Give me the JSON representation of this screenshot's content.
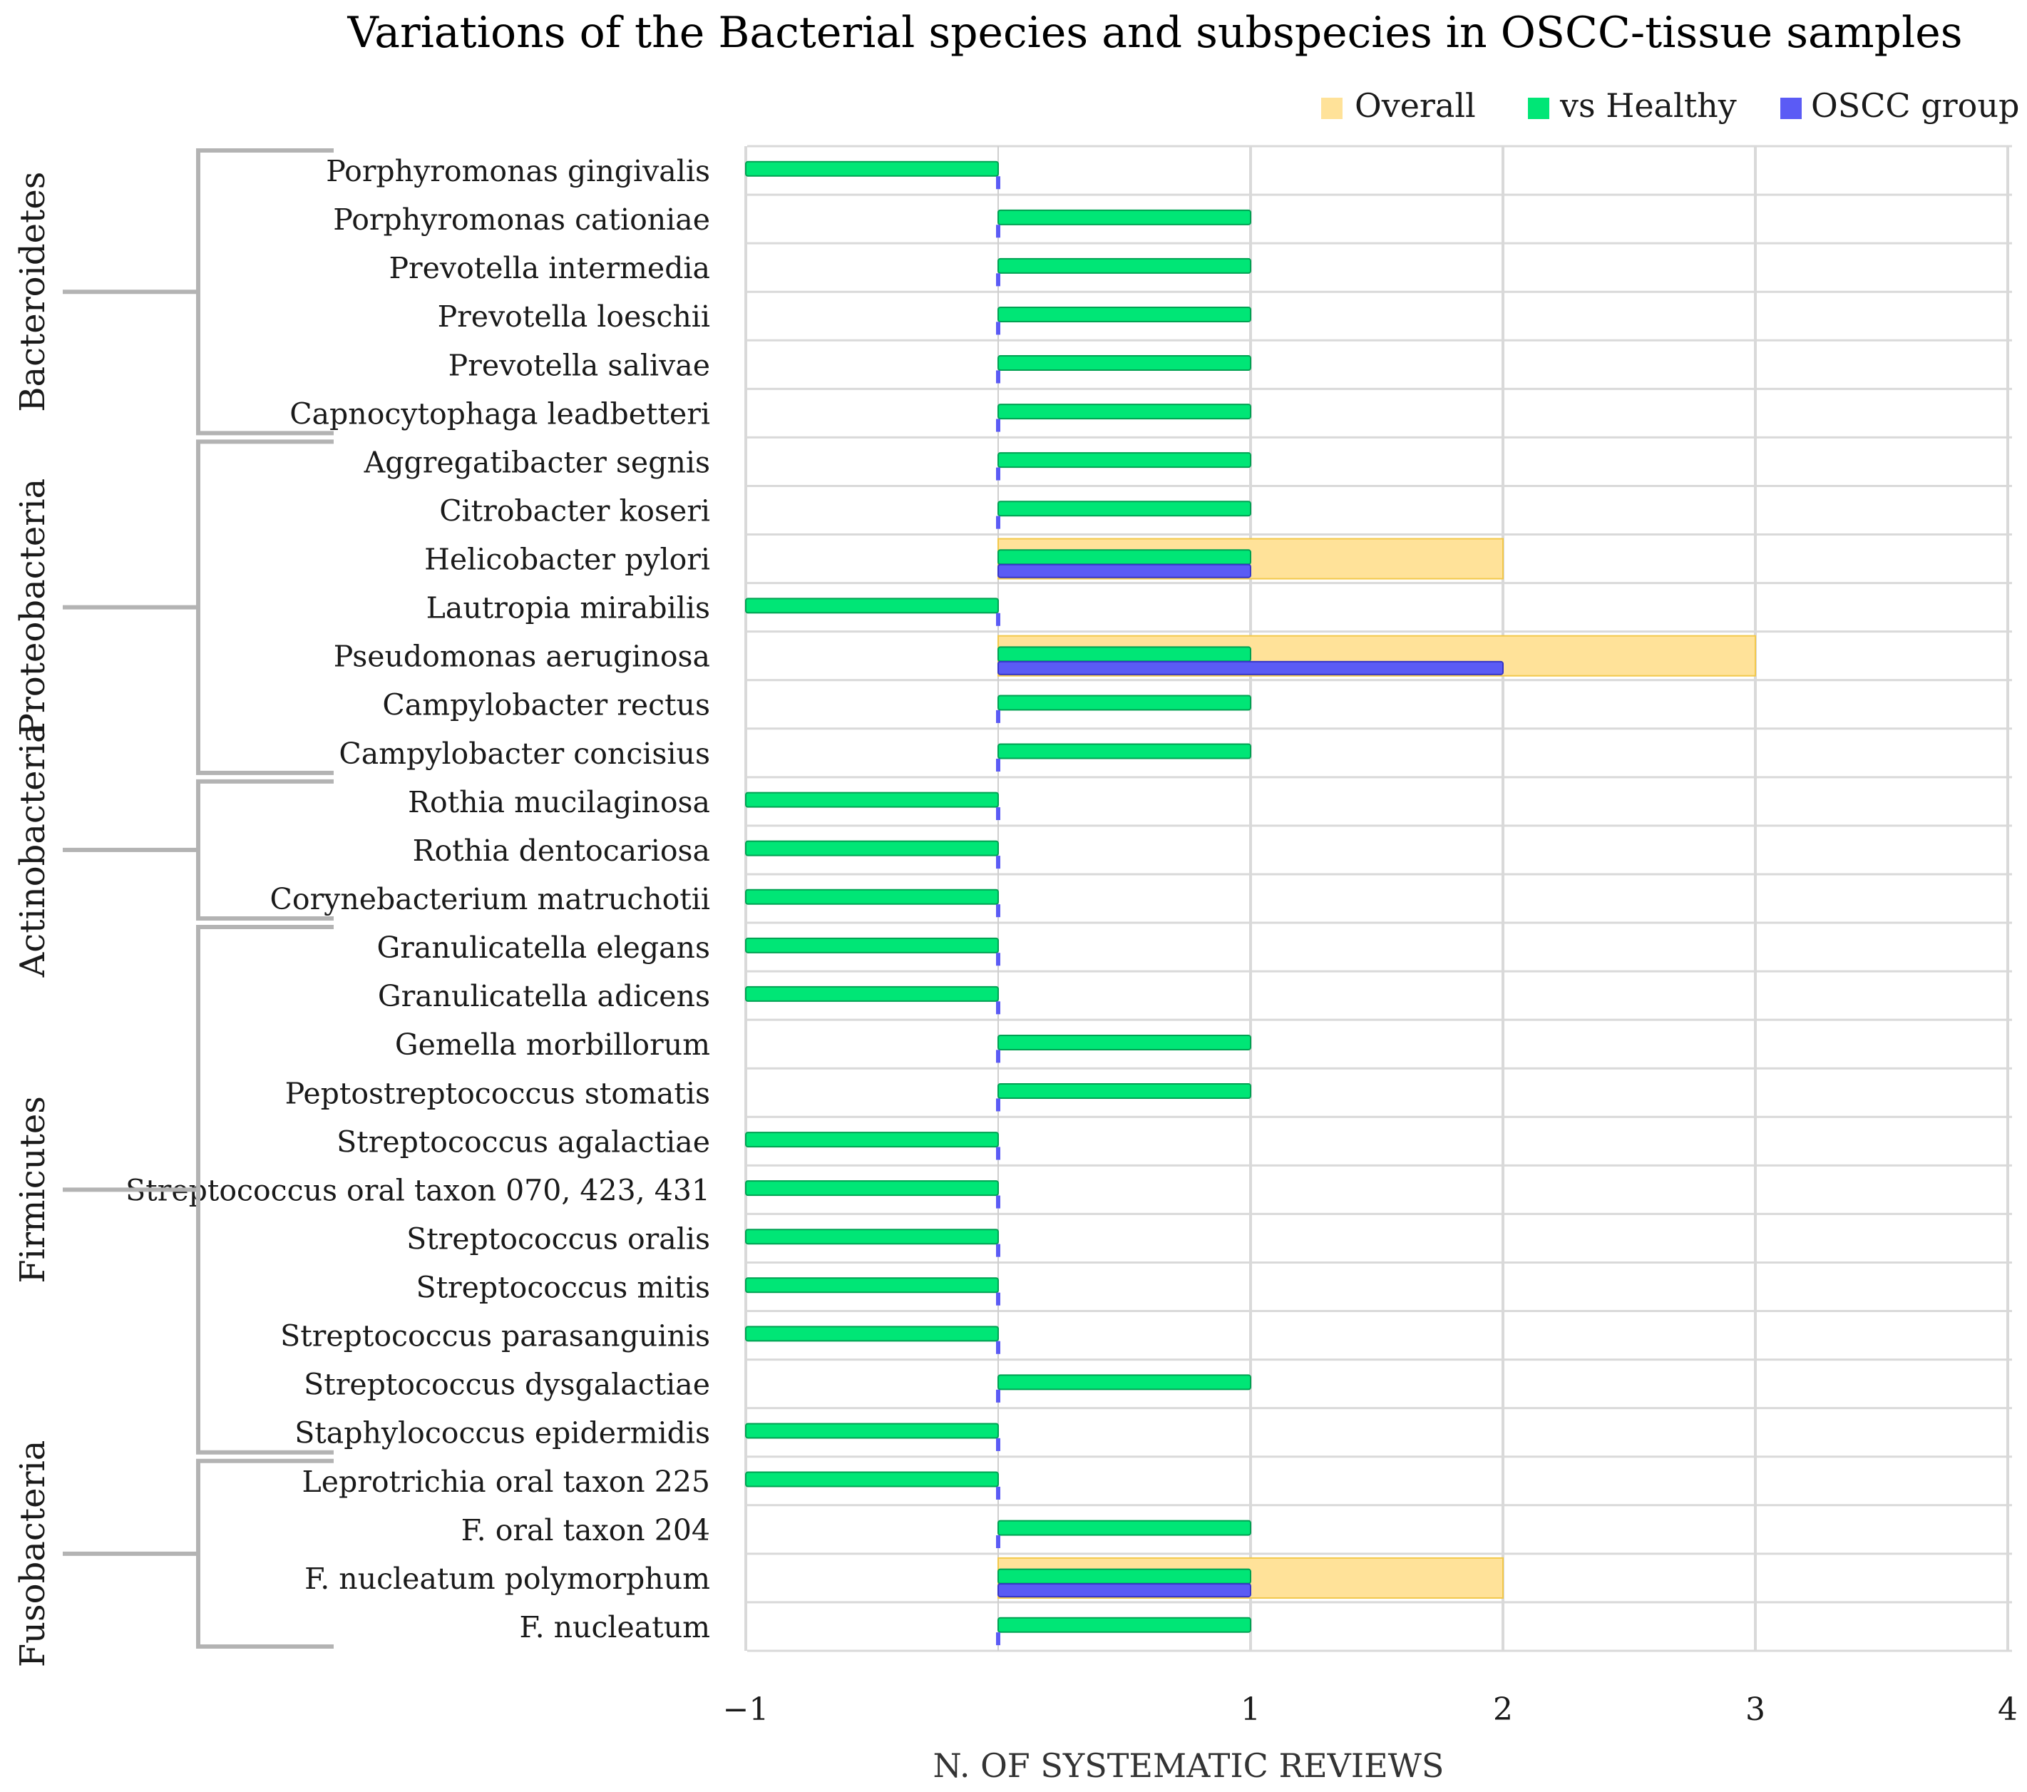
{
  "chart_data": {
    "type": "bar",
    "orientation": "horizontal",
    "title": "Variations of the Bacterial species and subspecies in OSCC-tissue samples",
    "xlabel": "N. OF SYSTEMATIC REVIEWS",
    "ylabel": "",
    "xlim": [
      -1,
      4
    ],
    "xticks": [
      {
        "value": -1,
        "label": "−1"
      },
      {
        "value": 1,
        "label": "1"
      },
      {
        "value": 2,
        "label": "2"
      },
      {
        "value": 3,
        "label": "3"
      },
      {
        "value": 4,
        "label": "4"
      }
    ],
    "gridlines": [
      -1,
      1,
      2,
      3,
      4
    ],
    "grid": true,
    "legend_position": "top-right",
    "categories": [
      "Porphyromonas gingivalis",
      "Porphyromonas cationiae",
      "Prevotella intermedia",
      "Prevotella loeschii",
      "Prevotella salivae",
      "Capnocytophaga leadbetteri",
      "Aggregatibacter segnis",
      "Citrobacter koseri",
      "Helicobacter pylori",
      "Lautropia mirabilis",
      "Pseudomonas aeruginosa",
      "Campylobacter rectus",
      "Campylobacter concisius ",
      "Rothia mucilaginosa",
      "Rothia dentocariosa",
      "Corynebacterium matruchotii",
      "Granulicatella elegans",
      "Granulicatella adicens",
      "Gemella morbillorum",
      "Peptostreptococcus stomatis",
      "Streptococcus agalactiae",
      "Streptococcus oral taxon 070, 423, 431",
      "Streptococcus oralis",
      "Streptococcus mitis",
      "Streptococcus parasanguinis",
      "Streptococcus dysgalactiae",
      "Staphylococcus epidermidis",
      "Leprotrichia oral taxon 225",
      "F. oral taxon 204",
      "F. nucleatum polymorphum",
      "F. nucleatum"
    ],
    "series": [
      {
        "name": "Overall",
        "color": "#FFE299",
        "values": [
          0,
          0,
          0,
          0,
          0,
          0,
          0,
          0,
          2,
          0,
          3,
          0,
          0,
          0,
          0,
          0,
          0,
          0,
          0,
          0,
          0,
          0,
          0,
          0,
          0,
          0,
          0,
          0,
          0,
          2,
          0
        ]
      },
      {
        "name": "vs Healthy",
        "color": "#00E676",
        "values": [
          -1,
          1,
          1,
          1,
          1,
          1,
          1,
          1,
          1,
          -1,
          1,
          1,
          1,
          -1,
          -1,
          -1,
          -1,
          -1,
          1,
          1,
          -1,
          -1,
          -1,
          -1,
          -1,
          1,
          -1,
          -1,
          1,
          1,
          1
        ]
      },
      {
        "name": "OSCC group",
        "color": "#5B5BF5",
        "values": [
          0,
          0,
          0,
          0,
          0,
          0,
          0,
          0,
          1,
          0,
          2,
          0,
          0,
          0,
          0,
          0,
          0,
          0,
          0,
          0,
          0,
          0,
          0,
          0,
          0,
          0,
          0,
          0,
          0,
          1,
          0
        ]
      }
    ],
    "groups": [
      {
        "name": "Bacteroidetes",
        "first": 0,
        "last": 5
      },
      {
        "name": "Proteobacteria",
        "first": 6,
        "last": 12
      },
      {
        "name": "Actinobacteria",
        "first": 13,
        "last": 15
      },
      {
        "name": "Firmicutes",
        "first": 16,
        "last": 26
      },
      {
        "name": "Fusobacteria",
        "first": 27,
        "last": 30
      }
    ]
  }
}
